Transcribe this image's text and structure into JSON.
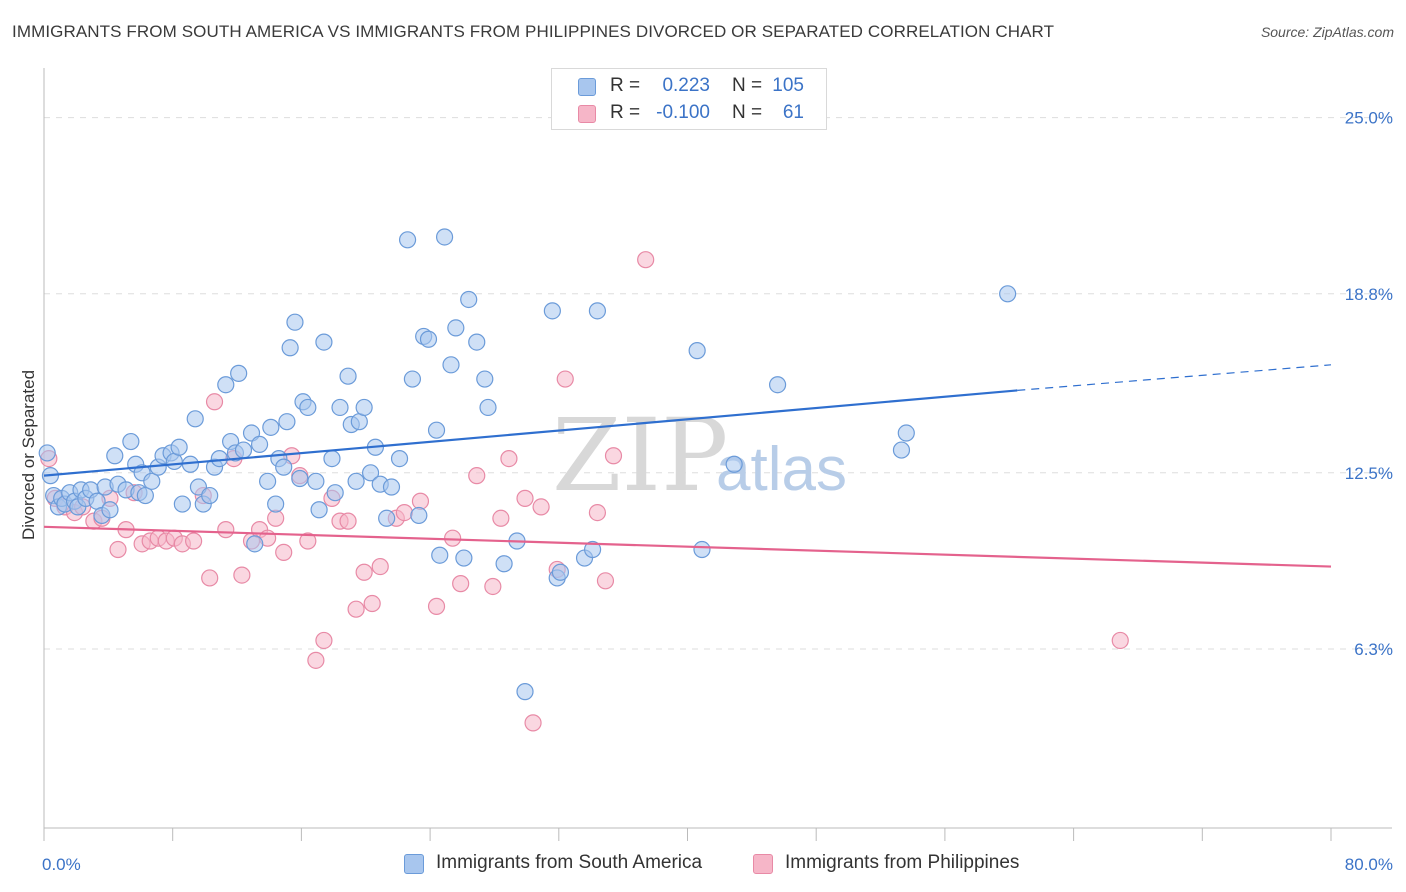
{
  "title": "IMMIGRANTS FROM SOUTH AMERICA VS IMMIGRANTS FROM PHILIPPINES DIVORCED OR SEPARATED CORRELATION CHART",
  "source": "Source: ZipAtlas.com",
  "watermark": {
    "zip": "ZIP",
    "atlas": "atlas"
  },
  "colors": {
    "blue_fill": "#a8c6ee",
    "blue_stroke": "#6b9bd9",
    "blue_line": "#2f6fcf",
    "pink_fill": "#f6b6c8",
    "pink_stroke": "#e88aa6",
    "pink_line": "#e4628d",
    "tick_text": "#3b73c7",
    "grid": "#dddddd"
  },
  "legend_top": [
    {
      "r_label": "R =",
      "r_value": "0.223",
      "n_label": "N =",
      "n_value": "105"
    },
    {
      "r_label": "R =",
      "r_value": "-0.100",
      "n_label": "N =",
      "n_value": "61"
    }
  ],
  "legend_bottom": [
    "Immigrants from South America",
    "Immigrants from Philippines"
  ],
  "chart_data": {
    "type": "scatter",
    "title": "IMMIGRANTS FROM SOUTH AMERICA VS IMMIGRANTS FROM PHILIPPINES DIVORCED OR SEPARATED CORRELATION CHART",
    "xlabel": "",
    "ylabel": "Divorced or Separated",
    "xlim": [
      0,
      80
    ],
    "ylim": [
      0,
      26.5
    ],
    "x_tick_labels": [
      "0.0%",
      "80.0%"
    ],
    "y_ticks": [
      6.3,
      12.5,
      18.8,
      25.0
    ],
    "y_tick_labels": [
      "6.3%",
      "12.5%",
      "18.8%",
      "25.0%"
    ],
    "grid": true,
    "legend_position": "top-center",
    "series": [
      {
        "name": "Immigrants from South America",
        "color": "#a8c6ee",
        "trend": {
          "x": [
            0,
            60.5
          ],
          "y": [
            12.4,
            15.4
          ],
          "dashed_to": [
            80,
            16.3
          ]
        },
        "points": [
          [
            0.2,
            13.2
          ],
          [
            0.4,
            12.4
          ],
          [
            0.6,
            11.7
          ],
          [
            0.9,
            11.3
          ],
          [
            1.1,
            11.6
          ],
          [
            1.3,
            11.4
          ],
          [
            1.6,
            11.8
          ],
          [
            1.9,
            11.5
          ],
          [
            2.1,
            11.3
          ],
          [
            2.3,
            11.9
          ],
          [
            2.6,
            11.6
          ],
          [
            2.9,
            11.9
          ],
          [
            3.3,
            11.5
          ],
          [
            3.6,
            11.0
          ],
          [
            3.8,
            12.0
          ],
          [
            4.1,
            11.2
          ],
          [
            4.4,
            13.1
          ],
          [
            4.6,
            12.1
          ],
          [
            5.1,
            11.9
          ],
          [
            5.4,
            13.6
          ],
          [
            5.7,
            12.8
          ],
          [
            5.9,
            11.8
          ],
          [
            6.1,
            12.5
          ],
          [
            6.3,
            11.7
          ],
          [
            6.7,
            12.2
          ],
          [
            7.1,
            12.7
          ],
          [
            7.4,
            13.1
          ],
          [
            7.9,
            13.2
          ],
          [
            8.1,
            12.9
          ],
          [
            8.4,
            13.4
          ],
          [
            8.6,
            11.4
          ],
          [
            9.1,
            12.8
          ],
          [
            9.4,
            14.4
          ],
          [
            9.6,
            12.0
          ],
          [
            9.9,
            11.4
          ],
          [
            10.3,
            11.7
          ],
          [
            10.6,
            12.7
          ],
          [
            10.9,
            13.0
          ],
          [
            11.3,
            15.6
          ],
          [
            11.6,
            13.6
          ],
          [
            11.9,
            13.2
          ],
          [
            12.1,
            16.0
          ],
          [
            12.4,
            13.3
          ],
          [
            12.9,
            13.9
          ],
          [
            13.1,
            10.0
          ],
          [
            13.4,
            13.5
          ],
          [
            13.9,
            12.2
          ],
          [
            14.1,
            14.1
          ],
          [
            14.4,
            11.4
          ],
          [
            14.6,
            13.0
          ],
          [
            14.9,
            12.7
          ],
          [
            15.1,
            14.3
          ],
          [
            15.3,
            16.9
          ],
          [
            15.6,
            17.8
          ],
          [
            15.9,
            12.3
          ],
          [
            16.1,
            15.0
          ],
          [
            16.4,
            14.8
          ],
          [
            16.9,
            12.2
          ],
          [
            17.1,
            11.2
          ],
          [
            17.4,
            17.1
          ],
          [
            17.9,
            13.0
          ],
          [
            18.1,
            11.8
          ],
          [
            18.4,
            14.8
          ],
          [
            18.9,
            15.9
          ],
          [
            19.1,
            14.2
          ],
          [
            19.4,
            12.2
          ],
          [
            19.6,
            14.3
          ],
          [
            19.9,
            14.8
          ],
          [
            20.3,
            12.5
          ],
          [
            20.6,
            13.4
          ],
          [
            20.9,
            12.1
          ],
          [
            21.3,
            10.9
          ],
          [
            21.6,
            12.0
          ],
          [
            22.1,
            13.0
          ],
          [
            22.6,
            20.7
          ],
          [
            22.9,
            15.8
          ],
          [
            23.3,
            11.0
          ],
          [
            23.6,
            17.3
          ],
          [
            23.9,
            17.2
          ],
          [
            24.4,
            14.0
          ],
          [
            24.6,
            9.6
          ],
          [
            24.9,
            20.8
          ],
          [
            25.3,
            16.3
          ],
          [
            25.6,
            17.6
          ],
          [
            26.1,
            9.5
          ],
          [
            26.4,
            18.6
          ],
          [
            26.9,
            17.1
          ],
          [
            27.4,
            15.8
          ],
          [
            27.6,
            14.8
          ],
          [
            28.6,
            9.3
          ],
          [
            29.4,
            10.1
          ],
          [
            29.9,
            4.8
          ],
          [
            31.6,
            18.2
          ],
          [
            31.9,
            8.8
          ],
          [
            32.1,
            9.0
          ],
          [
            33.6,
            9.5
          ],
          [
            34.1,
            9.8
          ],
          [
            34.4,
            18.2
          ],
          [
            40.6,
            16.8
          ],
          [
            40.9,
            9.8
          ],
          [
            42.9,
            12.8
          ],
          [
            45.6,
            15.6
          ],
          [
            53.3,
            13.3
          ],
          [
            53.6,
            13.9
          ],
          [
            59.9,
            18.8
          ]
        ]
      },
      {
        "name": "Immigrants from Philippines",
        "color": "#f6b6c8",
        "trend": {
          "x": [
            0,
            80
          ],
          "y": [
            10.6,
            9.2
          ]
        },
        "points": [
          [
            0.3,
            13.0
          ],
          [
            0.7,
            11.6
          ],
          [
            1.3,
            11.3
          ],
          [
            1.9,
            11.1
          ],
          [
            2.4,
            11.3
          ],
          [
            3.1,
            10.8
          ],
          [
            3.6,
            10.9
          ],
          [
            4.1,
            11.6
          ],
          [
            4.6,
            9.8
          ],
          [
            5.1,
            10.5
          ],
          [
            5.6,
            11.8
          ],
          [
            6.1,
            10.0
          ],
          [
            6.6,
            10.1
          ],
          [
            7.1,
            10.2
          ],
          [
            7.6,
            10.1
          ],
          [
            8.1,
            10.2
          ],
          [
            8.6,
            10.0
          ],
          [
            9.3,
            10.1
          ],
          [
            9.9,
            11.7
          ],
          [
            10.3,
            8.8
          ],
          [
            10.6,
            15.0
          ],
          [
            11.3,
            10.5
          ],
          [
            11.8,
            13.0
          ],
          [
            12.3,
            8.9
          ],
          [
            12.9,
            10.1
          ],
          [
            13.4,
            10.5
          ],
          [
            13.9,
            10.2
          ],
          [
            14.4,
            10.9
          ],
          [
            14.9,
            9.7
          ],
          [
            15.4,
            13.1
          ],
          [
            15.9,
            12.4
          ],
          [
            16.4,
            10.1
          ],
          [
            16.9,
            5.9
          ],
          [
            17.4,
            6.6
          ],
          [
            17.9,
            11.6
          ],
          [
            18.4,
            10.8
          ],
          [
            18.9,
            10.8
          ],
          [
            19.4,
            7.7
          ],
          [
            19.9,
            9.0
          ],
          [
            20.4,
            7.9
          ],
          [
            20.9,
            9.2
          ],
          [
            21.9,
            10.9
          ],
          [
            22.4,
            11.1
          ],
          [
            23.4,
            11.5
          ],
          [
            24.4,
            7.8
          ],
          [
            25.4,
            10.2
          ],
          [
            25.9,
            8.6
          ],
          [
            26.9,
            12.4
          ],
          [
            27.9,
            8.5
          ],
          [
            28.4,
            10.9
          ],
          [
            28.9,
            13.0
          ],
          [
            29.9,
            11.6
          ],
          [
            30.4,
            3.7
          ],
          [
            30.9,
            11.3
          ],
          [
            31.9,
            9.1
          ],
          [
            32.4,
            15.8
          ],
          [
            34.4,
            11.1
          ],
          [
            34.9,
            8.7
          ],
          [
            35.4,
            13.1
          ],
          [
            37.4,
            20.0
          ],
          [
            66.9,
            6.6
          ]
        ]
      }
    ]
  }
}
